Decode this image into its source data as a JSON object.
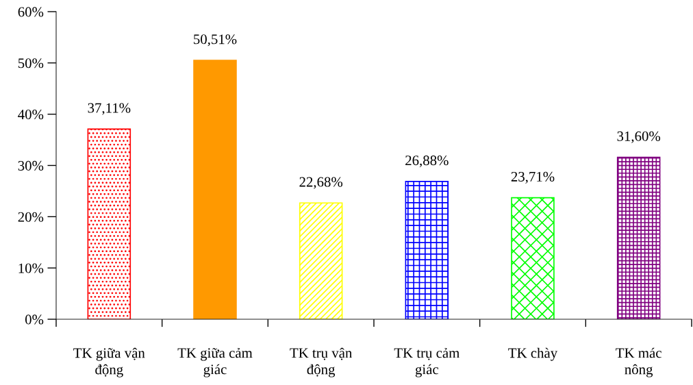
{
  "chart_data": {
    "type": "bar",
    "categories": [
      "TK giữa vận\nđộng",
      "TK giữa cảm\ngiác",
      "TK trụ vận\nđộng",
      "TK trụ cảm\ngiác",
      "TK chày",
      "TK mác\nnông"
    ],
    "values": [
      37.11,
      50.51,
      22.68,
      26.88,
      23.71,
      31.6
    ],
    "value_labels": [
      "37,11%",
      "50,51%",
      "22,68%",
      "26,88%",
      "23,71%",
      "31,60%"
    ],
    "colors": [
      "#ff0000",
      "#ff9900",
      "#ffff00",
      "#0000ff",
      "#00ff00",
      "#800080"
    ],
    "ylim": [
      0,
      60
    ],
    "yticks": [
      {
        "value": 0,
        "label": "0%"
      },
      {
        "value": 10,
        "label": "10%"
      },
      {
        "value": 20,
        "label": "20%"
      },
      {
        "value": 30,
        "label": "30%"
      },
      {
        "value": 40,
        "label": "40%"
      },
      {
        "value": 50,
        "label": "50%"
      },
      {
        "value": 60,
        "label": "60%"
      }
    ],
    "grid": false,
    "legend": false
  }
}
